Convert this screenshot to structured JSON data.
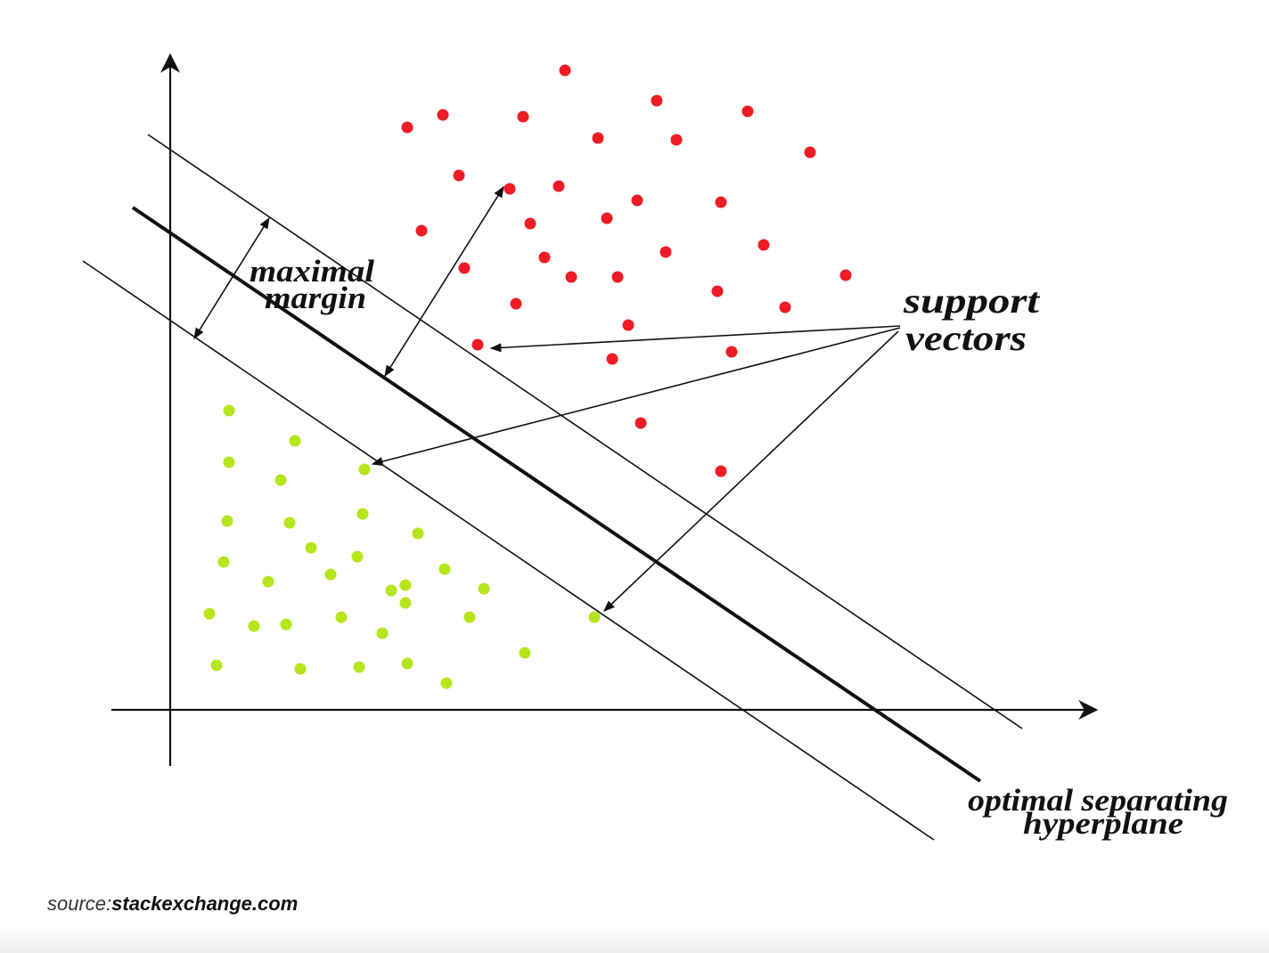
{
  "diagram": {
    "labels": {
      "maximal_margin_line1": "maximal",
      "maximal_margin_line2": "margin",
      "support_vectors_line1": "support",
      "support_vectors_line2": "vectors",
      "hyperplane_line1": "optimal separating",
      "hyperplane_line2": "hyperplane"
    },
    "colors": {
      "class_positive": "#ee1c24",
      "class_negative": "#b5e61d",
      "lines": "#111111",
      "background": "#ffffff"
    },
    "classes": [
      {
        "color_key": "class_positive",
        "count": 37
      },
      {
        "color_key": "class_negative",
        "count": 35
      }
    ]
  },
  "caption": {
    "prefix": "source:",
    "site": "stackexchange.com"
  }
}
